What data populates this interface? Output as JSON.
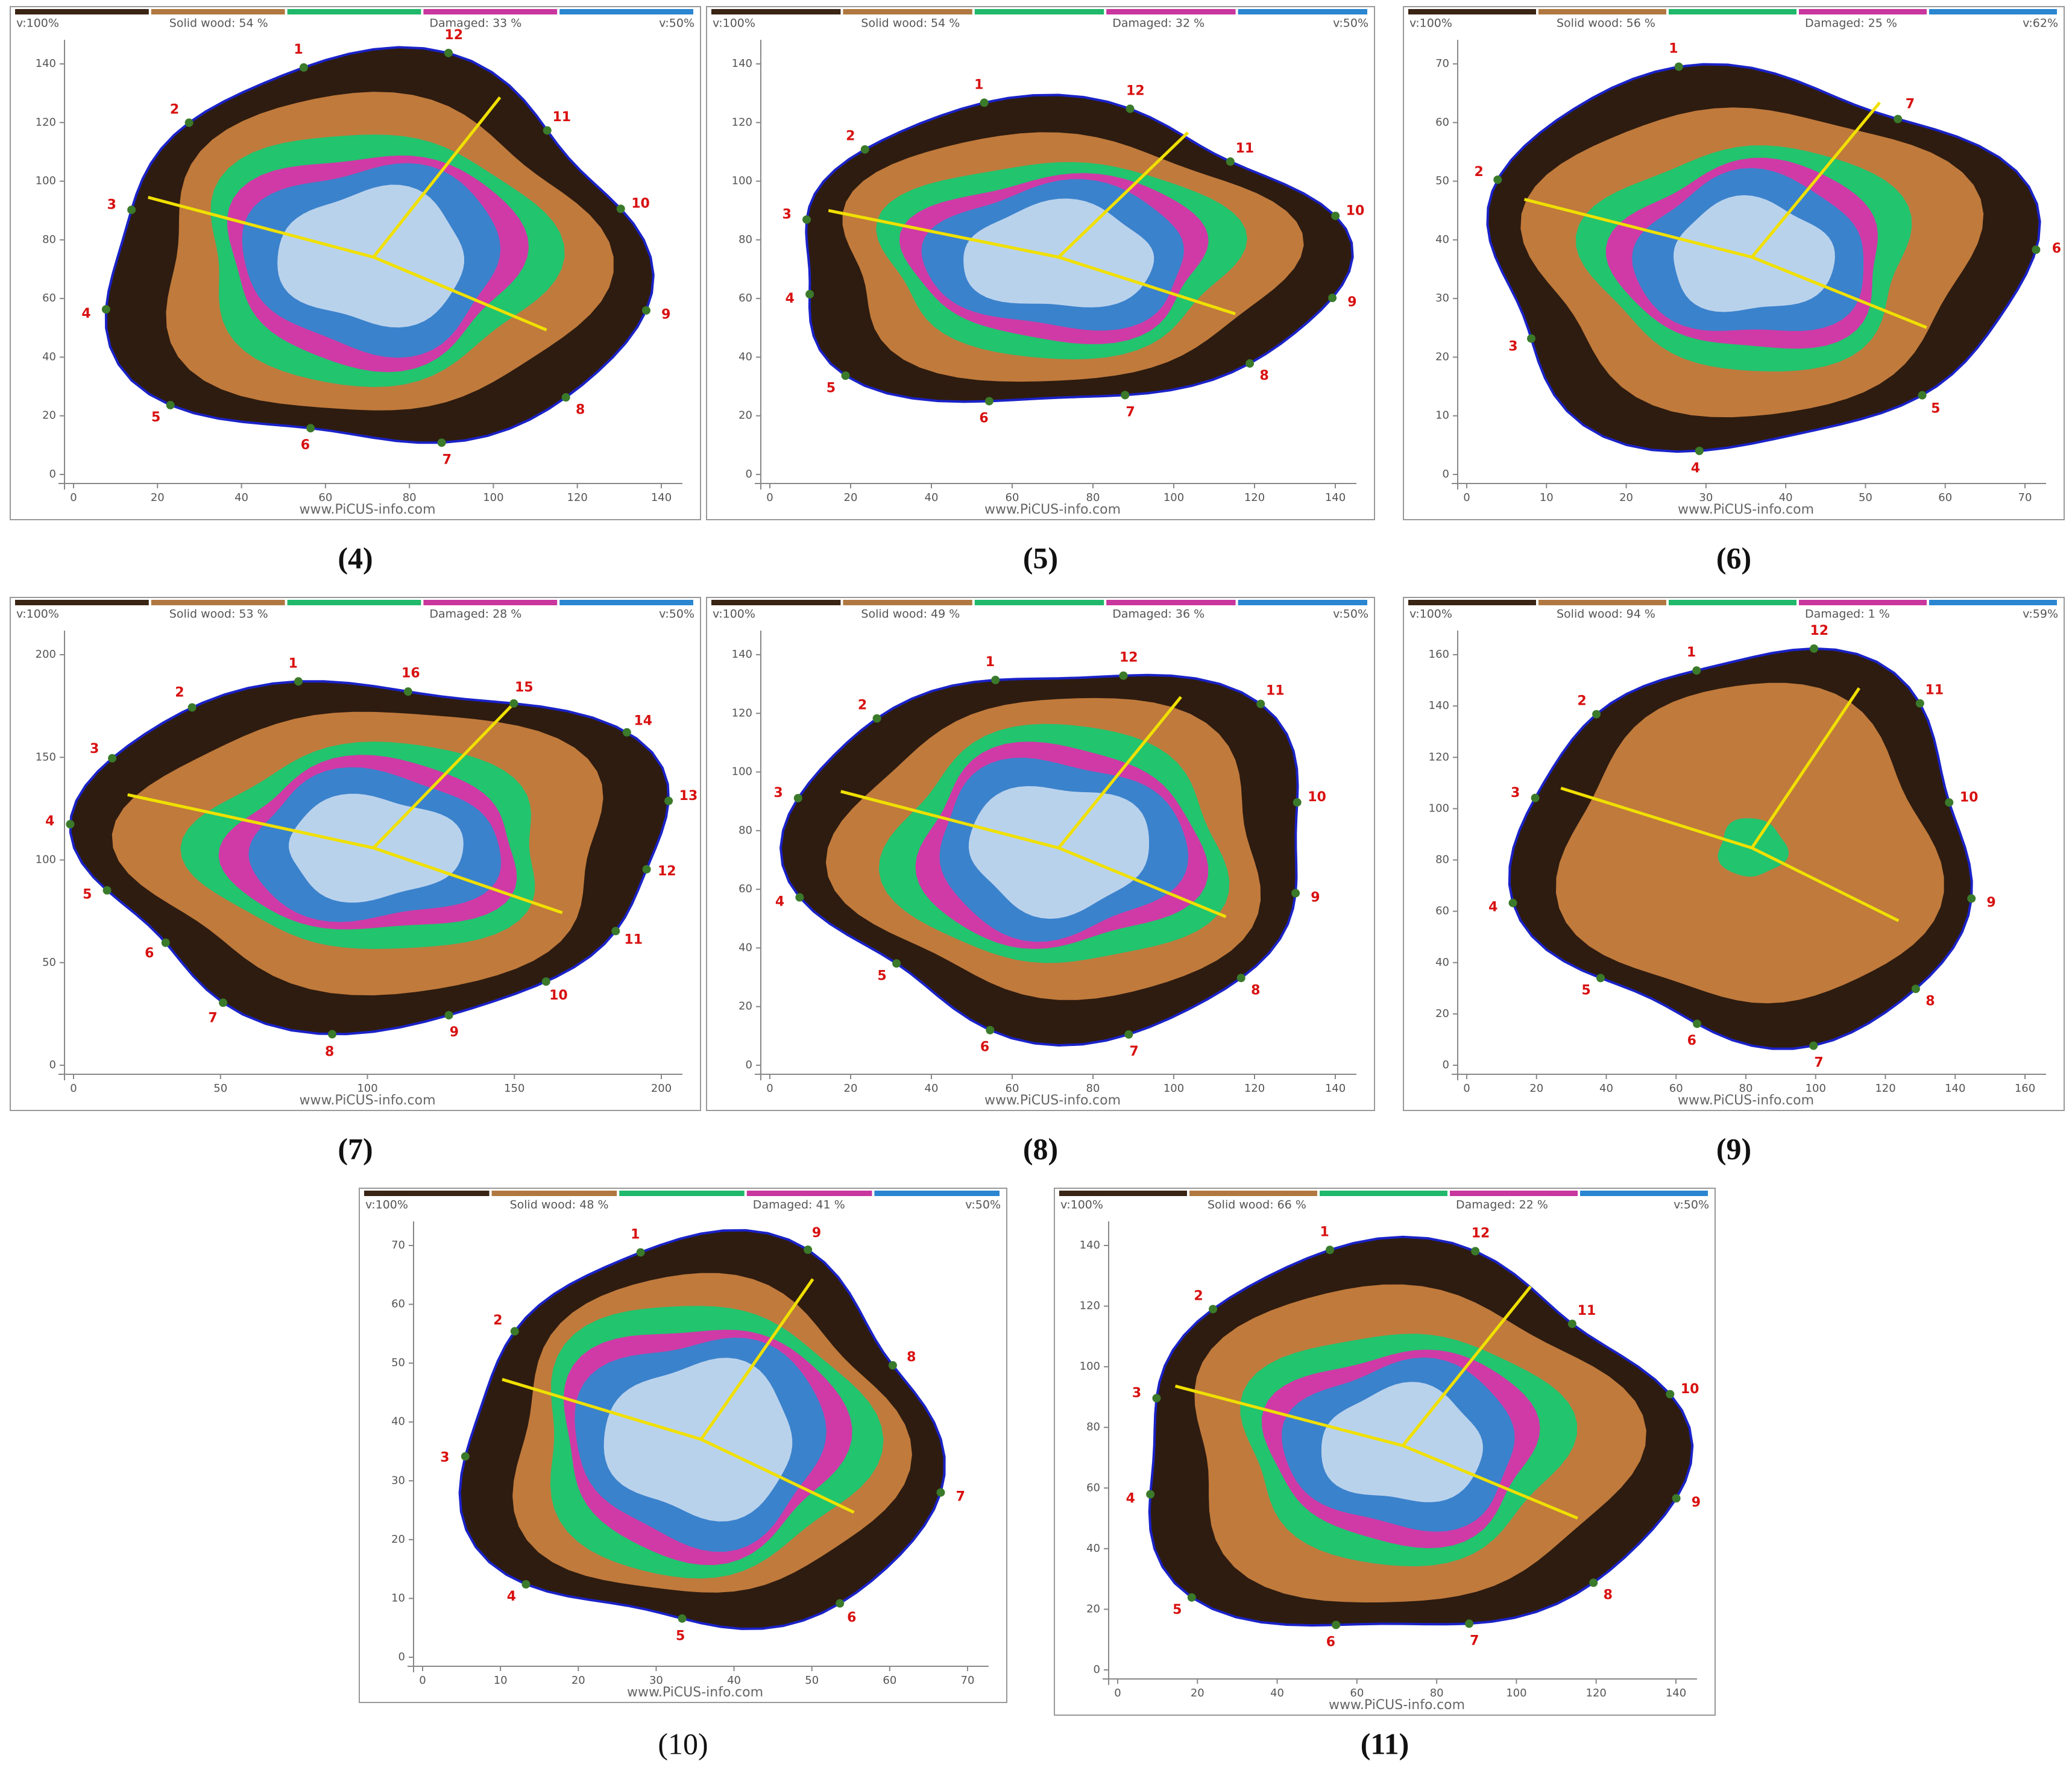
{
  "panels": [
    {
      "caption": "(4)",
      "header": {
        "left": "v:100%",
        "solid": "Solid wood: 54 %",
        "damaged": "Damaged: 33 %",
        "right": "v:50%"
      },
      "xticks": [
        0,
        20,
        40,
        60,
        80,
        100,
        120,
        140
      ],
      "yticks": [
        0,
        20,
        40,
        60,
        80,
        100,
        120,
        140
      ],
      "sensors": [
        1,
        2,
        3,
        4,
        5,
        6,
        7,
        8,
        9,
        10,
        11,
        12
      ],
      "watermark": "www.PiCUS-info.com"
    },
    {
      "caption": "(5)",
      "header": {
        "left": "v:100%",
        "solid": "Solid wood: 54 %",
        "damaged": "Damaged: 32 %",
        "right": "v:50%"
      },
      "xticks": [
        0,
        20,
        40,
        60,
        80,
        100,
        120,
        140
      ],
      "yticks": [
        0,
        20,
        40,
        60,
        80,
        100,
        120,
        140
      ],
      "sensors": [
        1,
        2,
        3,
        4,
        5,
        6,
        7,
        8,
        9,
        10,
        11,
        12
      ],
      "watermark": "www.PiCUS-info.com"
    },
    {
      "caption": "(6)",
      "header": {
        "left": "v:100%",
        "solid": "Solid wood: 56 %",
        "damaged": "Damaged: 25 %",
        "right": "v:62%"
      },
      "xticks": [
        0,
        10,
        20,
        30,
        40,
        50,
        60,
        70
      ],
      "yticks": [
        0,
        10,
        20,
        30,
        40,
        50,
        60,
        70
      ],
      "sensors": [
        1,
        2,
        3,
        4,
        5,
        6,
        7
      ],
      "watermark": "www.PiCUS-info.com"
    },
    {
      "caption": "(7)",
      "header": {
        "left": "v:100%",
        "solid": "Solid wood: 53 %",
        "damaged": "Damaged: 28 %",
        "right": "v:50%"
      },
      "xticks": [
        0,
        50,
        100,
        150,
        200
      ],
      "yticks": [
        0,
        50,
        100,
        150,
        200
      ],
      "sensors": [
        1,
        2,
        3,
        4,
        5,
        6,
        7,
        8,
        9,
        10,
        11,
        12,
        13,
        14,
        15,
        16
      ],
      "watermark": "www.PiCUS-info.com"
    },
    {
      "caption": "(8)",
      "header": {
        "left": "v:100%",
        "solid": "Solid wood: 49 %",
        "damaged": "Damaged: 36 %",
        "right": "v:50%"
      },
      "xticks": [
        0,
        20,
        40,
        60,
        80,
        100,
        120,
        140
      ],
      "yticks": [
        0,
        20,
        40,
        60,
        80,
        100,
        120,
        140
      ],
      "sensors": [
        1,
        2,
        3,
        4,
        5,
        6,
        7,
        8,
        9,
        10,
        11,
        12
      ],
      "watermark": "www.PiCUS-info.com"
    },
    {
      "caption": "(9)",
      "header": {
        "left": "v:100%",
        "solid": "Solid wood: 94 %",
        "damaged": "Damaged: 1 %",
        "right": "v:59%"
      },
      "xticks": [
        0,
        20,
        40,
        60,
        80,
        100,
        120,
        140,
        160
      ],
      "yticks": [
        0,
        20,
        40,
        60,
        80,
        100,
        120,
        140,
        160
      ],
      "sensors": [
        1,
        2,
        3,
        4,
        5,
        6,
        7,
        8,
        9,
        10,
        11,
        12
      ],
      "watermark": "www.PiCUS-info.com"
    },
    {
      "caption": "(10)",
      "header": {
        "left": "v:100%",
        "solid": "Solid wood: 48 %",
        "damaged": "Damaged: 41 %",
        "right": "v:50%"
      },
      "xticks": [
        0,
        10,
        20,
        30,
        40,
        50,
        60,
        70
      ],
      "yticks": [
        0,
        10,
        20,
        30,
        40,
        50,
        60,
        70
      ],
      "sensors": [
        1,
        2,
        3,
        4,
        5,
        6,
        7,
        8,
        9
      ],
      "watermark": "www.PiCUS-info.com"
    },
    {
      "caption": "(11)",
      "header": {
        "left": "v:100%",
        "solid": "Solid wood: 66 %",
        "damaged": "Damaged: 22 %",
        "right": "v:50%"
      },
      "xticks": [
        0,
        20,
        40,
        60,
        80,
        100,
        120,
        140
      ],
      "yticks": [
        0,
        20,
        40,
        60,
        80,
        100,
        120,
        140
      ],
      "sensors": [
        1,
        2,
        3,
        4,
        5,
        6,
        7,
        8,
        9,
        10,
        11,
        12
      ],
      "watermark": "www.PiCUS-info.com"
    }
  ]
}
